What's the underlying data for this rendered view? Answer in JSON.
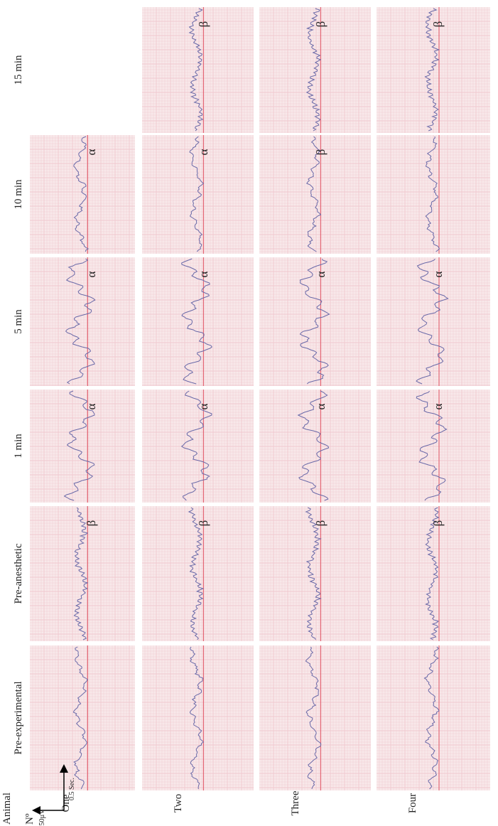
{
  "header": {
    "animal_label": "Animal",
    "number_label": "Nº"
  },
  "animals": [
    "One",
    "Two",
    "Three",
    "Four"
  ],
  "time_points": [
    "Pre-experimental",
    "Pre-anesthetic",
    "1 min",
    "5 min",
    "10 min",
    "15 min"
  ],
  "panels": [
    [
      {},
      {},
      {},
      {}
    ],
    [
      {
        "band": "β"
      },
      {
        "band": "β"
      },
      {
        "band": "β"
      },
      {
        "band": "β"
      }
    ],
    [
      {
        "band": "α"
      },
      {
        "band": "α"
      },
      {
        "band": "α"
      },
      {
        "band": "α"
      }
    ],
    [
      {
        "band": "α"
      },
      {
        "band": "α"
      },
      {
        "band": "α"
      },
      {
        "band": "α"
      }
    ],
    [
      {
        "band": "α"
      },
      {
        "band": "α"
      },
      {
        "band": "β"
      },
      {}
    ],
    [
      null,
      {
        "band": "β"
      },
      {
        "band": "β"
      },
      {
        "band": "β"
      }
    ]
  ],
  "scale_bar": {
    "amplitude": "50µV",
    "time": "0.5 Sec."
  }
}
